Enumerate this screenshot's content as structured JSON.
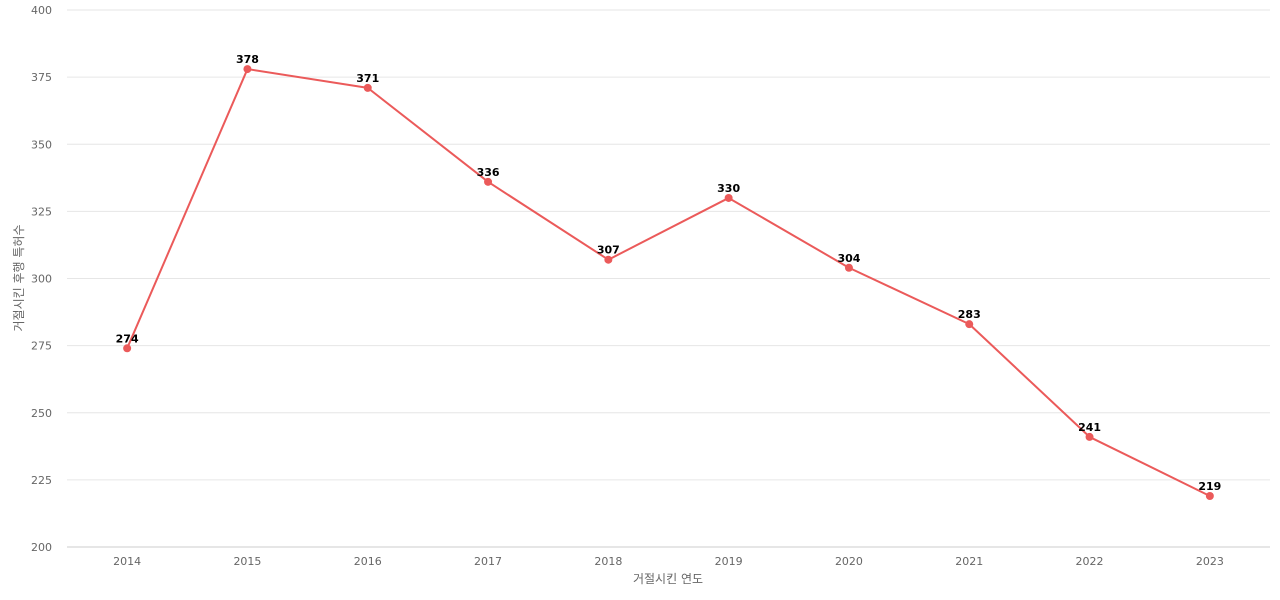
{
  "chart_data": {
    "type": "line",
    "title": "",
    "xlabel": "거절시킨 연도",
    "ylabel": "거절시킨 후행 특허수",
    "categories": [
      "2014",
      "2015",
      "2016",
      "2017",
      "2018",
      "2019",
      "2020",
      "2021",
      "2022",
      "2023"
    ],
    "series": [
      {
        "values": [
          274,
          378,
          371,
          336,
          307,
          330,
          304,
          283,
          241,
          219
        ],
        "color": "#eb5a5a"
      }
    ],
    "ylim": [
      200,
      400
    ],
    "yticks": [
      200,
      225,
      250,
      275,
      300,
      325,
      350,
      375,
      400
    ],
    "grid": true,
    "legend": "none",
    "data_labels": true
  }
}
